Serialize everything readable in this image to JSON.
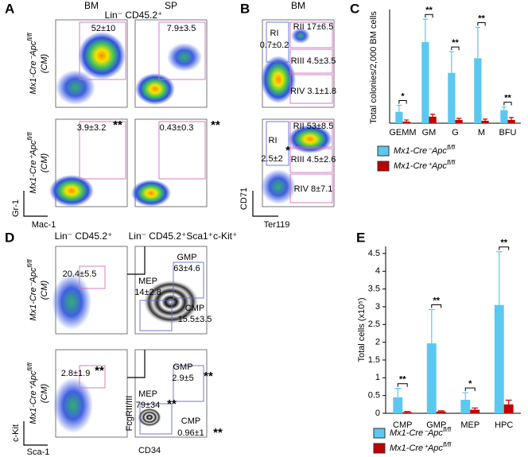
{
  "chart_data": [
    {
      "type": "bar",
      "y_label": "Total colonies/2,000 BM cells",
      "categories": [
        "GEMM",
        "GM",
        "G",
        "M",
        "BFU"
      ],
      "series": [
        {
          "name": "Mx1-Cre⁻Apcfl/fl",
          "color": "#5bc8f0",
          "values": [
            7,
            50,
            31,
            40,
            8
          ],
          "errors": [
            4,
            14,
            13,
            19,
            2
          ]
        },
        {
          "name": "Mx1-Cre⁺Apcfl/fl",
          "color": "#c00000",
          "values": [
            1,
            4,
            2,
            1.5,
            2
          ],
          "errors": [
            1,
            1.5,
            1,
            1,
            1.5
          ]
        }
      ],
      "significance": [
        "*",
        "**",
        "**",
        "**",
        "**"
      ],
      "ylim": [
        0,
        70
      ]
    },
    {
      "type": "bar",
      "y_label": "Total cells (x10⁵)",
      "categories": [
        "CMP",
        "GMP",
        "MEP",
        "HPC"
      ],
      "series": [
        {
          "name": "Mx1-Cre⁻Apcfl/fl",
          "color": "#5bc8f0",
          "values": [
            0.45,
            1.97,
            0.38,
            3.05
          ],
          "errors": [
            0.25,
            0.95,
            0.2,
            1.5
          ]
        },
        {
          "name": "Mx1-Cre⁺Apcfl/fl",
          "color": "#c00000",
          "values": [
            0.03,
            0.05,
            0.1,
            0.25
          ],
          "errors": [
            0.02,
            0.02,
            0.05,
            0.12
          ]
        }
      ],
      "significance": [
        "**",
        "**",
        "*",
        "**"
      ],
      "ylim": [
        0,
        4.7
      ],
      "yticks": [
        0,
        0.5,
        1,
        1.5,
        2,
        2.5,
        3,
        3.5,
        4,
        4.5
      ]
    }
  ],
  "panels": {
    "A": {
      "label": "A",
      "columns": [
        "BM",
        "SP"
      ],
      "header": "Lin⁻ CD45.2⁺",
      "rows": [
        {
          "genotype": "Mx1-Cre⁻Apcfl/fl",
          "note": "(CM)"
        },
        {
          "genotype": "Mx1-Cre⁺Apcfl/fl",
          "note": "(CM)"
        }
      ],
      "gates": [
        "52±10",
        "7.9±3.5",
        "3.9±3.2",
        "**",
        "0.43±0.3",
        "**"
      ],
      "y_axis": "Gr-1",
      "x_axis": "Mac-1"
    },
    "B": {
      "label": "B",
      "column": "BM",
      "gates": [
        "RI",
        "0.7±0.2",
        "RII 17±6.5",
        "RIII 4.5±3.5",
        "RIV 3.1±1.8",
        "RI",
        "2.5±2",
        "*",
        "RII 53±8.5",
        "RIII 4.5±2.6",
        "RIV 8±7.1"
      ],
      "y_axis": "CD71",
      "x_axis": "Ter119"
    },
    "C": {
      "label": "C"
    },
    "D": {
      "label": "D",
      "columns": [
        "Lin⁻ CD45.2⁺",
        "Lin⁻ CD45.2⁺Sca1⁺c-Kit⁺"
      ],
      "rows": [
        {
          "genotype": "Mx1-Cre⁻Apcfl/fl",
          "note": "(CM)"
        },
        {
          "genotype": "Mx1-Cre⁺Apcfl/fl",
          "note": "(CM)"
        }
      ],
      "gates": [
        "20.4±5.5",
        "MEP",
        "14±2.8",
        "GMP",
        "63±4.6",
        "CMP",
        "15.5±3.5",
        "2.8±1.9",
        "**",
        "GMP",
        "2.9±5",
        "**",
        "MEP",
        "79±34",
        "**",
        "CMP",
        "0.96±1",
        "**"
      ],
      "y_axis": "c-Kit",
      "x_axis": "Sca-1",
      "y_axis2": "FcgRII/III",
      "x_axis2": "CD34"
    },
    "E": {
      "label": "E"
    }
  }
}
